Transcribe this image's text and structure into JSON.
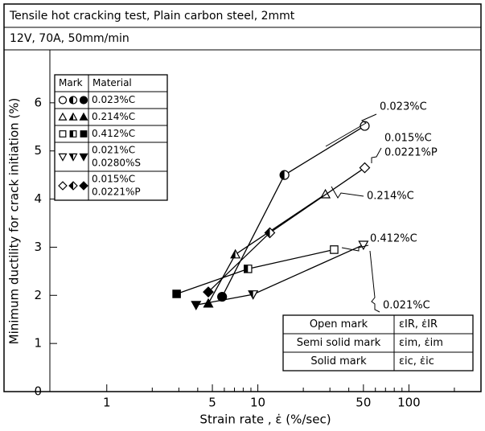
{
  "chart_data": {
    "type": "scatter-line",
    "title": "Tensile hot cracking test, Plain carbon steel, 2mmt",
    "subtitle": "12V, 70A, 50mm/min",
    "x_label": "Strain rate , ε̇  (%/sec)",
    "y_label": "Minimum ductility for crack initiation (%)",
    "xscale": "log",
    "xlim": [
      0.42,
      300
    ],
    "xticks": [
      1,
      5,
      10,
      50,
      100
    ],
    "xminor": [
      2,
      3,
      4,
      6,
      7,
      8,
      9,
      20,
      30,
      40,
      60,
      70,
      80,
      90,
      200
    ],
    "ylim": [
      0,
      7.1
    ],
    "yticks": [
      0,
      1,
      2,
      3,
      4,
      5,
      6
    ],
    "color": "#000000",
    "series": [
      {
        "name": [
          "0.023%C"
        ],
        "marker": "circle",
        "x": [
          5.8,
          15,
          51
        ],
        "values": [
          1.97,
          4.5,
          5.52
        ],
        "fills": [
          "solid",
          "semi",
          "open"
        ]
      },
      {
        "name": [
          "0.214%C"
        ],
        "marker": "triangle",
        "x": [
          4.7,
          7.1,
          28
        ],
        "values": [
          1.83,
          2.85,
          4.1
        ],
        "fills": [
          "solid",
          "semi",
          "open"
        ]
      },
      {
        "name": [
          "0.412%C"
        ],
        "marker": "square",
        "x": [
          2.9,
          8.6,
          32
        ],
        "values": [
          2.03,
          2.55,
          2.95
        ],
        "fills": [
          "solid",
          "semi",
          "open"
        ]
      },
      {
        "name": [
          "0.021%C",
          "0.0280%S"
        ],
        "marker": "triangle-down",
        "x": [
          3.9,
          9.3,
          50
        ],
        "values": [
          1.8,
          2.02,
          3.05
        ],
        "fills": [
          "solid",
          "semi",
          "open"
        ]
      },
      {
        "name": [
          "0.015%C",
          "0.0221%P"
        ],
        "marker": "diamond",
        "x": [
          4.7,
          12,
          51
        ],
        "values": [
          2.07,
          3.3,
          4.65
        ],
        "fills": [
          "solid",
          "semi",
          "open"
        ]
      }
    ],
    "legend_header": [
      "Mark",
      "Material"
    ],
    "annotations": [
      {
        "lines": [
          "0.023%C"
        ],
        "series": 0
      },
      {
        "lines": [
          "0.015%C",
          "0.0221%P"
        ],
        "series": 4
      },
      {
        "lines": [
          "0.214%C"
        ],
        "series": 1
      },
      {
        "lines": [
          "0.412%C"
        ],
        "series": 2
      },
      {
        "lines": [
          "0.021%C",
          "0.0280%S"
        ],
        "series": 3
      }
    ],
    "mark_table": [
      [
        "Open mark",
        "εIR, ε̇IR"
      ],
      [
        "Semi solid mark",
        "εim, ε̇im"
      ],
      [
        "Solid mark",
        "εic, ε̇ic"
      ]
    ]
  }
}
